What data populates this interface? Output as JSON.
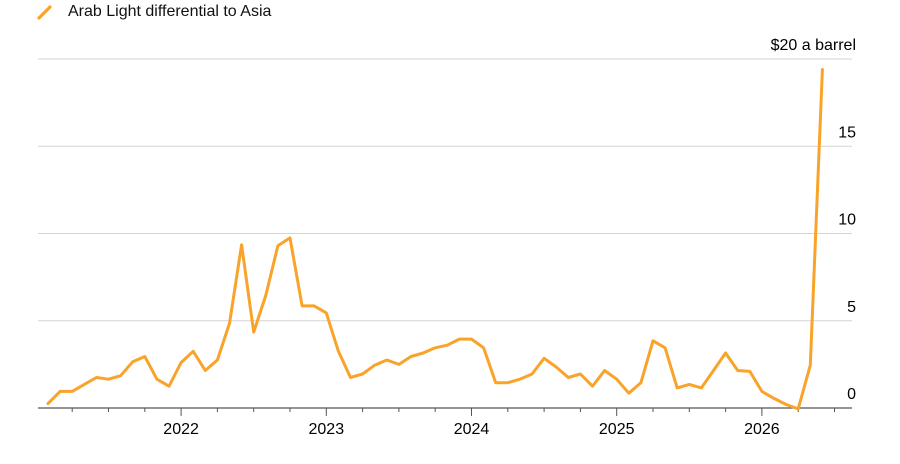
{
  "chart_data": {
    "type": "line",
    "title": "",
    "xlabel": "",
    "ylabel": "",
    "y_unit_label": "$20 a barrel",
    "ylim": [
      0,
      20
    ],
    "yticks": [
      0,
      5,
      10,
      15,
      20
    ],
    "ytick_labels": [
      "0",
      "5",
      "10",
      "15",
      "$20 a barrel"
    ],
    "xticks": [
      "2022-01-01",
      "2023-01-01",
      "2024-01-01",
      "2025-01-01",
      "2026-01-01"
    ],
    "xtick_labels": [
      "2022",
      "2023",
      "2024",
      "2025",
      "2026"
    ],
    "x_range": [
      "2021-02-01",
      "2026-08-01"
    ],
    "grid": "horizontal",
    "legend_position": "top-left",
    "colors": {
      "series": "#F9A32A",
      "grid": "#d4d4d4",
      "axis": "#555555"
    },
    "series": [
      {
        "name": "Arab Light differential to Asia",
        "x": [
          "2021-02-01",
          "2021-03-01",
          "2021-04-01",
          "2021-05-01",
          "2021-06-01",
          "2021-07-01",
          "2021-08-01",
          "2021-09-01",
          "2021-10-01",
          "2021-11-01",
          "2021-12-01",
          "2022-01-01",
          "2022-02-01",
          "2022-03-01",
          "2022-04-01",
          "2022-05-01",
          "2022-06-01",
          "2022-07-01",
          "2022-08-01",
          "2022-09-01",
          "2022-10-01",
          "2022-11-01",
          "2022-12-01",
          "2023-01-01",
          "2023-02-01",
          "2023-03-01",
          "2023-04-01",
          "2023-05-01",
          "2023-06-01",
          "2023-07-01",
          "2023-08-01",
          "2023-09-01",
          "2023-10-01",
          "2023-11-01",
          "2023-12-01",
          "2024-01-01",
          "2024-02-01",
          "2024-03-01",
          "2024-04-01",
          "2024-05-01",
          "2024-06-01",
          "2024-07-01",
          "2024-08-01",
          "2024-09-01",
          "2024-10-01",
          "2024-11-01",
          "2024-12-01",
          "2025-01-01",
          "2025-02-01",
          "2025-03-01",
          "2025-04-01",
          "2025-05-01",
          "2025-06-01",
          "2025-07-01",
          "2025-08-01",
          "2025-09-01",
          "2025-10-01",
          "2025-11-01",
          "2025-12-01",
          "2026-01-01",
          "2026-02-01",
          "2026-03-01",
          "2026-04-01",
          "2026-05-01",
          "2026-06-01"
        ],
        "values": [
          0.25,
          0.95,
          0.95,
          1.35,
          1.75,
          1.65,
          1.85,
          2.65,
          2.95,
          1.65,
          1.25,
          2.6,
          3.25,
          2.15,
          2.75,
          4.85,
          9.35,
          4.35,
          6.45,
          9.3,
          9.75,
          5.85,
          5.85,
          5.45,
          3.25,
          1.75,
          1.95,
          2.45,
          2.75,
          2.5,
          2.95,
          3.15,
          3.45,
          3.6,
          3.95,
          3.95,
          3.45,
          1.45,
          1.45,
          1.65,
          1.95,
          2.85,
          2.35,
          1.75,
          1.95,
          1.25,
          2.15,
          1.65,
          0.85,
          1.45,
          3.85,
          3.45,
          1.15,
          1.35,
          1.15,
          2.15,
          3.15,
          2.15,
          2.1,
          0.95,
          0.55,
          0.2,
          -0.05,
          2.45,
          19.4
        ]
      }
    ]
  }
}
